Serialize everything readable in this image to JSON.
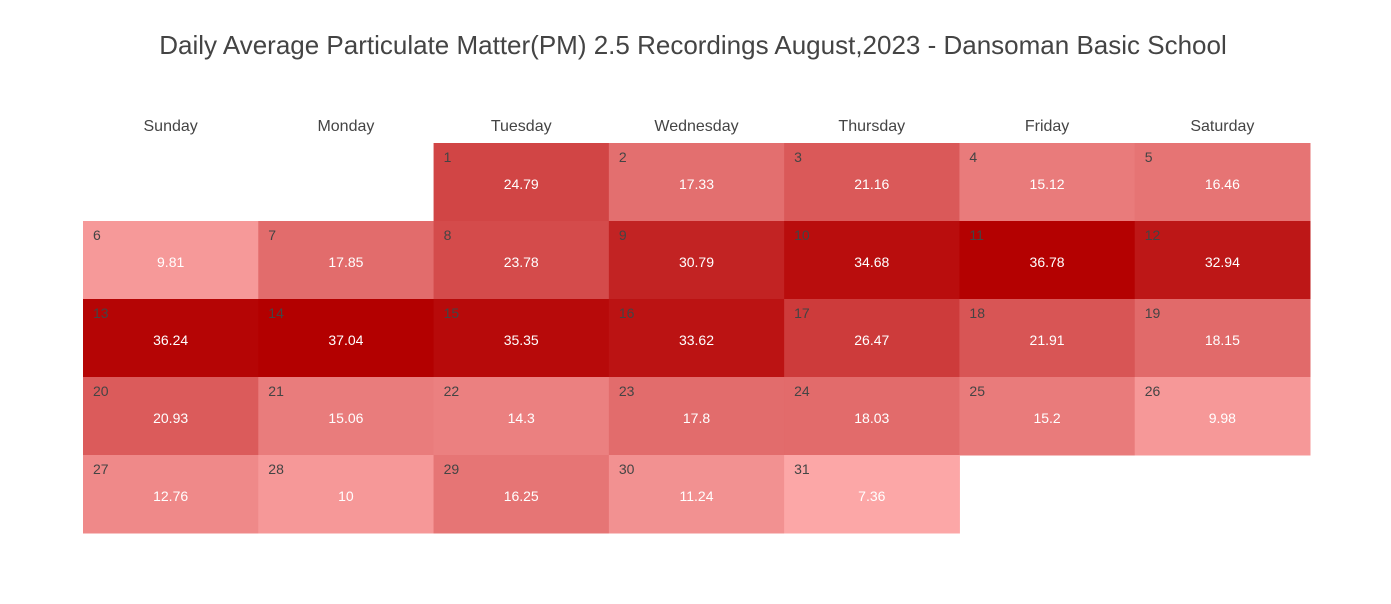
{
  "chart_data": {
    "type": "heatmap",
    "title": "Daily Average Particulate Matter(PM) 2.5 Recordings August,2023 - Dansoman Basic School",
    "weekdays": [
      "Sunday",
      "Monday",
      "Tuesday",
      "Wednesday",
      "Thursday",
      "Friday",
      "Saturday"
    ],
    "first_weekday_index": 2,
    "days": [
      1,
      2,
      3,
      4,
      5,
      6,
      7,
      8,
      9,
      10,
      11,
      12,
      13,
      14,
      15,
      16,
      17,
      18,
      19,
      20,
      21,
      22,
      23,
      24,
      25,
      26,
      27,
      28,
      29,
      30,
      31
    ],
    "values": [
      "24.79",
      "17.33",
      "21.16",
      "15.12",
      "16.46",
      "9.81",
      "17.85",
      "23.78",
      "30.79",
      "34.68",
      "36.78",
      "32.94",
      "36.24",
      "37.04",
      "35.35",
      "33.62",
      "26.47",
      "21.91",
      "18.15",
      "20.93",
      "15.06",
      "14.3",
      "17.8",
      "18.03",
      "15.2",
      "9.98",
      "12.76",
      "10",
      "16.25",
      "11.24",
      "7.36"
    ],
    "color_low": "#fca7a7",
    "color_high": "#b30000",
    "value_label_color": "#ffffff",
    "day_label_color": "#444444"
  }
}
